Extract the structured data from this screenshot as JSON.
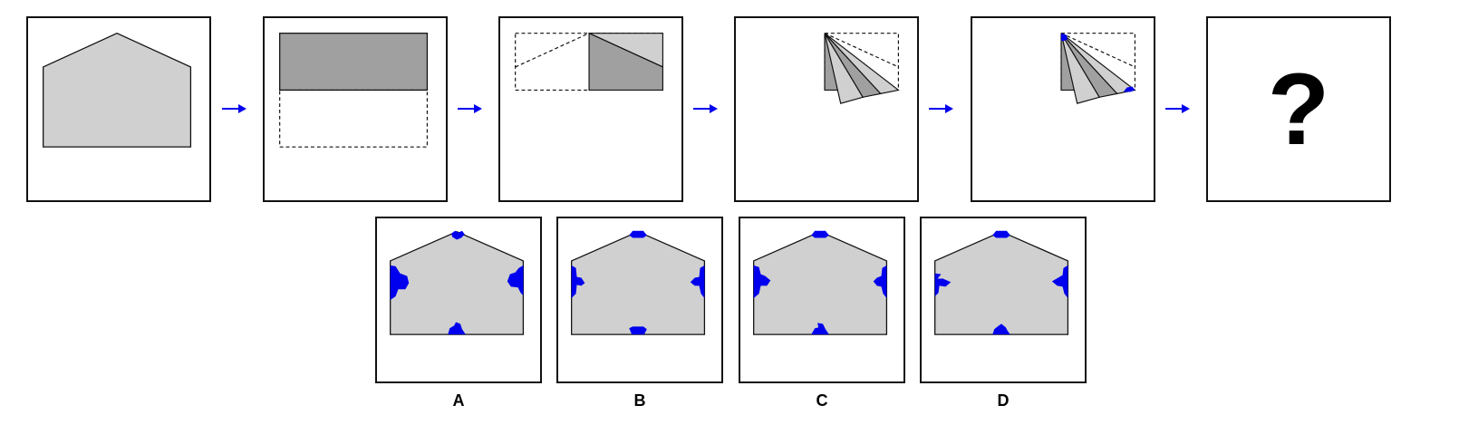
{
  "sequence": {
    "question_mark": "?"
  },
  "options": [
    {
      "label": "A"
    },
    {
      "label": "B"
    },
    {
      "label": "C"
    },
    {
      "label": "D"
    }
  ],
  "colors": {
    "paper_light": "#d0d0d0",
    "paper_dark": "#a0a0a0",
    "hole": "#0000ee",
    "arrow": "#0000ee",
    "border": "#111111"
  }
}
